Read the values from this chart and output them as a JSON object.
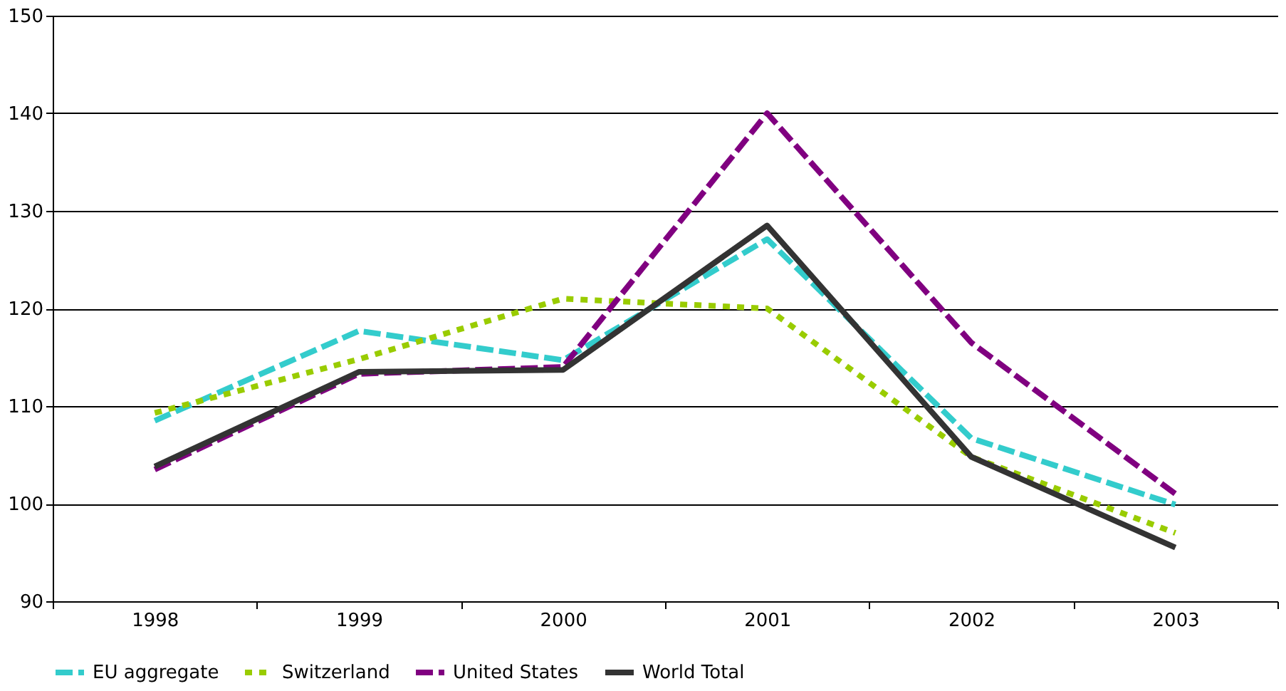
{
  "chart_data": {
    "type": "line",
    "categories": [
      "1998",
      "1999",
      "2000",
      "2001",
      "2002",
      "2003"
    ],
    "series": [
      {
        "name": "EU aggregate",
        "color": "#33cccc",
        "line_style": "dashed",
        "values": [
          108.5,
          117.7,
          114.7,
          127.1,
          106.7,
          99.9
        ]
      },
      {
        "name": "Switzerland",
        "color": "#99cc00",
        "line_style": "dotted",
        "values": [
          109.3,
          114.8,
          121,
          120,
          104.8,
          97
        ]
      },
      {
        "name": "United States",
        "color": "#800080",
        "line_style": "dashed",
        "values": [
          103.5,
          113.3,
          114,
          140,
          116.5,
          101
        ]
      },
      {
        "name": "World Total",
        "color": "#333333",
        "line_style": "solid",
        "values": [
          103.8,
          113.5,
          113.7,
          128.5,
          104.8,
          95.5
        ]
      }
    ],
    "ylim": [
      90,
      150
    ],
    "yticks": [
      90,
      100,
      110,
      120,
      130,
      140,
      150
    ],
    "grid": "y",
    "legend": "bottom",
    "marker": "none"
  }
}
